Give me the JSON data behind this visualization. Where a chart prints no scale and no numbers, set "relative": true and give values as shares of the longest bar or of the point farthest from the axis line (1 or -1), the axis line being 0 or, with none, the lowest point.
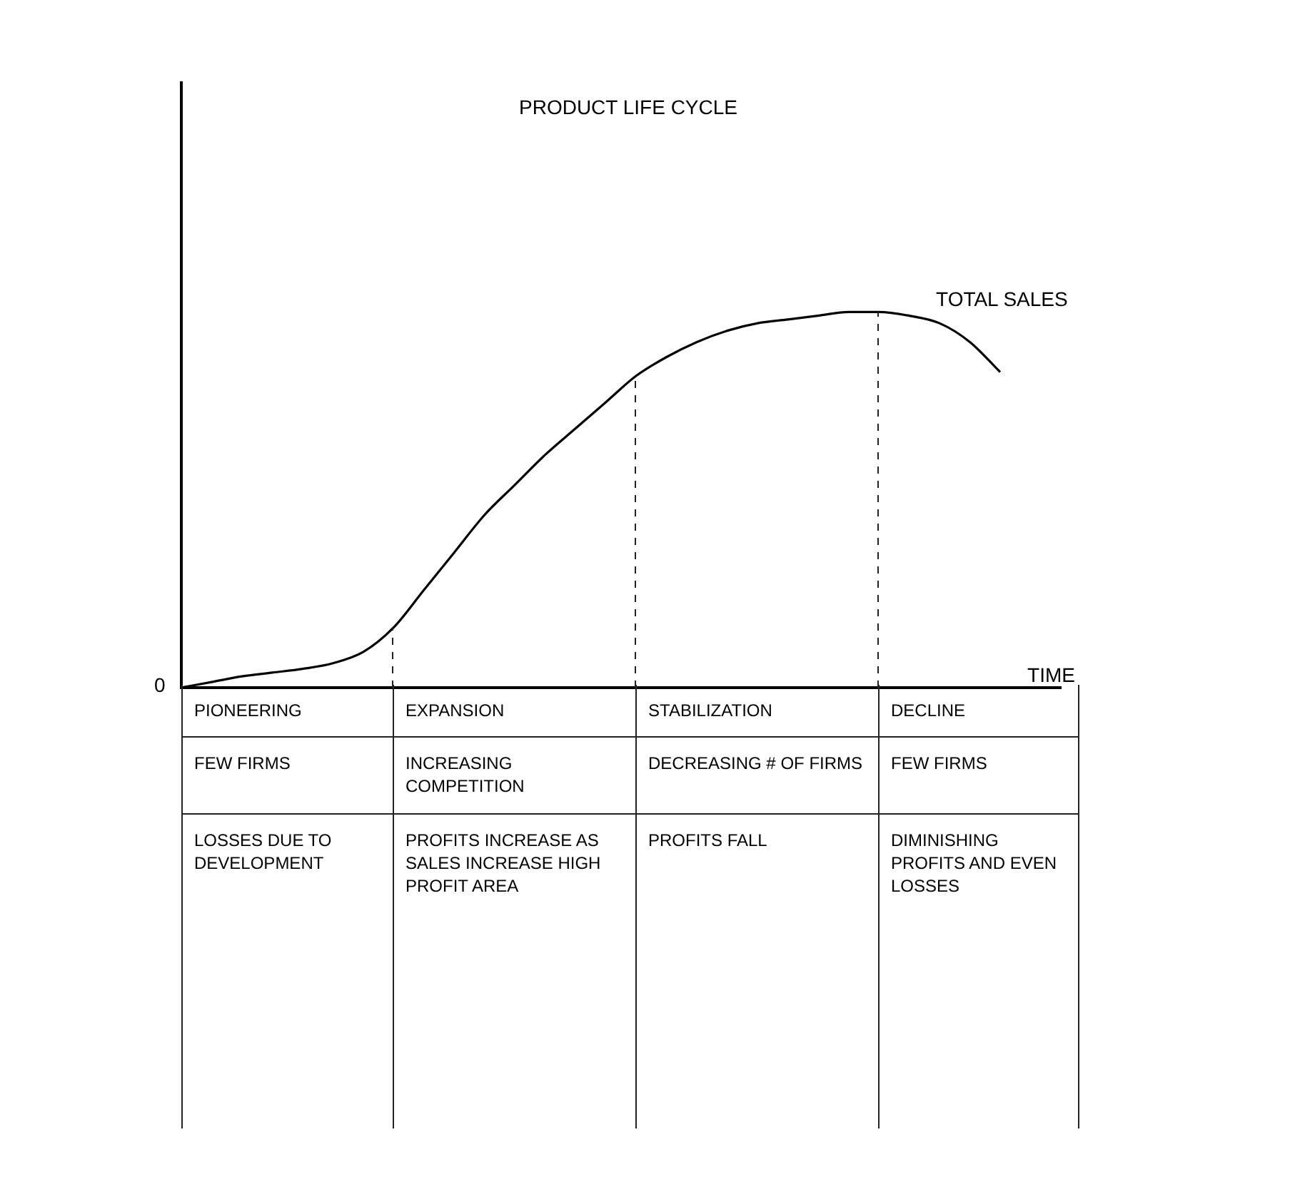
{
  "chart_data": {
    "type": "line",
    "title": "PRODUCT LIFE CYCLE",
    "xlabel": "TIME",
    "relative": true,
    "marker": "none",
    "categories": [
      null,
      null,
      null,
      null,
      null,
      null,
      null,
      null,
      null,
      null,
      null,
      null,
      null,
      null,
      null,
      null,
      null,
      null,
      null,
      null,
      null,
      null,
      null,
      null,
      null,
      null,
      null,
      null,
      null,
      null
    ],
    "series": [
      {
        "name": "TOTAL SALES",
        "color": "#000000",
        "values": [
          0,
          0.015,
          0.03,
          0.04,
          0.05,
          0.065,
          0.095,
          0.16,
          0.26,
          0.36,
          0.46,
          0.54,
          0.62,
          0.69,
          0.76,
          0.83,
          0.88,
          0.92,
          0.95,
          0.97,
          0.98,
          0.99,
          1,
          1,
          0.99,
          0.97,
          0.92,
          0.84,
          null,
          null
        ]
      }
    ],
    "annotations": [
      "0",
      "PIONEERING",
      "EXPANSION",
      "STABILIZATION",
      "DECLINE",
      "FEW FIRMS",
      "INCREASING COMPETITION",
      "DECREASING # OF FIRMS",
      "FEW FIRMS",
      "LOSSES DUE TO DEVELOPMENT",
      "PROFITS INCREASE AS SALES INCREASE HIGH PROFIT AREA",
      "PROFITS FALL",
      "DIMINISHING PROFITS AND EVEN LOSSES"
    ]
  }
}
